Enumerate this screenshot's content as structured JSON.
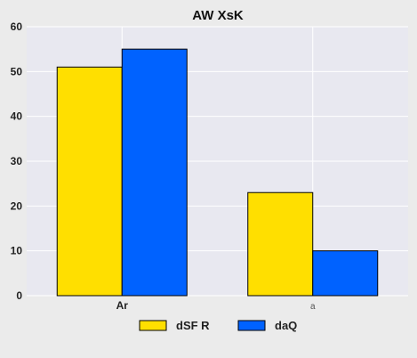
{
  "chart_data": {
    "type": "bar",
    "title": "AW XsK",
    "xlabel": "",
    "ylabel": "",
    "categories": [
      "Ar",
      "a"
    ],
    "series": [
      {
        "name": "dSF R",
        "values": [
          51,
          23
        ],
        "color": "#ffdf00"
      },
      {
        "name": "daQ",
        "values": [
          55,
          10
        ],
        "color": "#0062ff"
      }
    ],
    "ylim": [
      0,
      60
    ],
    "yticks": [
      0,
      10,
      20,
      30,
      40,
      50,
      60
    ],
    "grid": true,
    "legend_position": "bottom-center",
    "plot_background": "#e8e8f0",
    "grid_color": "#ffffff",
    "bar_edge_color": "#000000"
  }
}
